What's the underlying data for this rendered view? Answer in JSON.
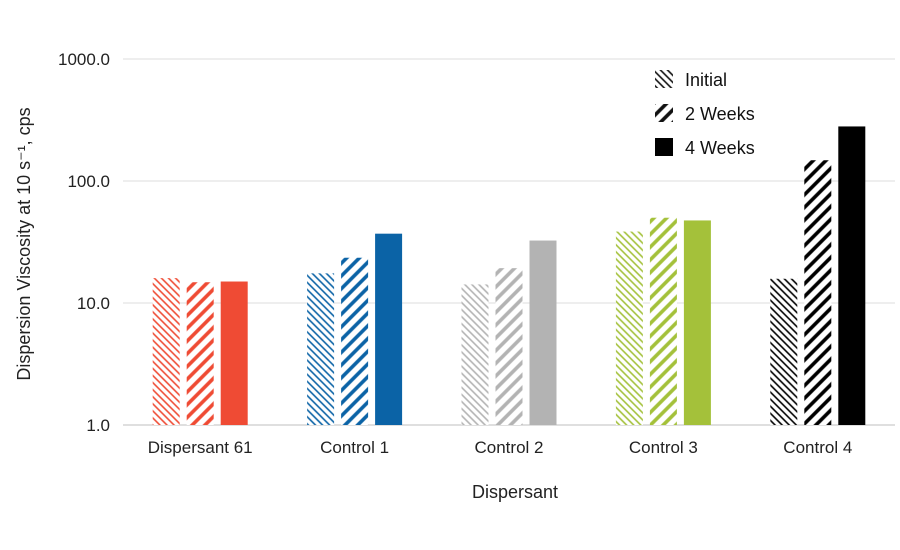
{
  "chart_data": {
    "type": "bar",
    "xlabel": "Dispersant",
    "ylabel": "Dispersion Viscosity at 10 s⁻¹, cps",
    "yscale": "log",
    "ylim": [
      1.0,
      1000.0
    ],
    "ytick_labels": [
      "1.0",
      "10.0",
      "100.0",
      "1000.0"
    ],
    "grid": true,
    "legend_position": "top-right",
    "categories": [
      "Dispersant 61",
      "Control 1",
      "Control 2",
      "Control 3",
      "Control 4"
    ],
    "category_colors": [
      "#ef4b34",
      "#0b63a6",
      "#b3b3b3",
      "#a4c13a",
      "#000000"
    ],
    "series": [
      {
        "name": "Initial",
        "pattern": "fine-hatch",
        "values": [
          16.0,
          17.5,
          14.2,
          38.5,
          15.8
        ]
      },
      {
        "name": "2 Weeks",
        "pattern": "wide-hatch",
        "values": [
          14.8,
          23.5,
          19.3,
          50.0,
          148.0
        ]
      },
      {
        "name": "4 Weeks",
        "pattern": "solid",
        "values": [
          15.0,
          37.0,
          32.5,
          47.5,
          280.0
        ]
      }
    ]
  }
}
